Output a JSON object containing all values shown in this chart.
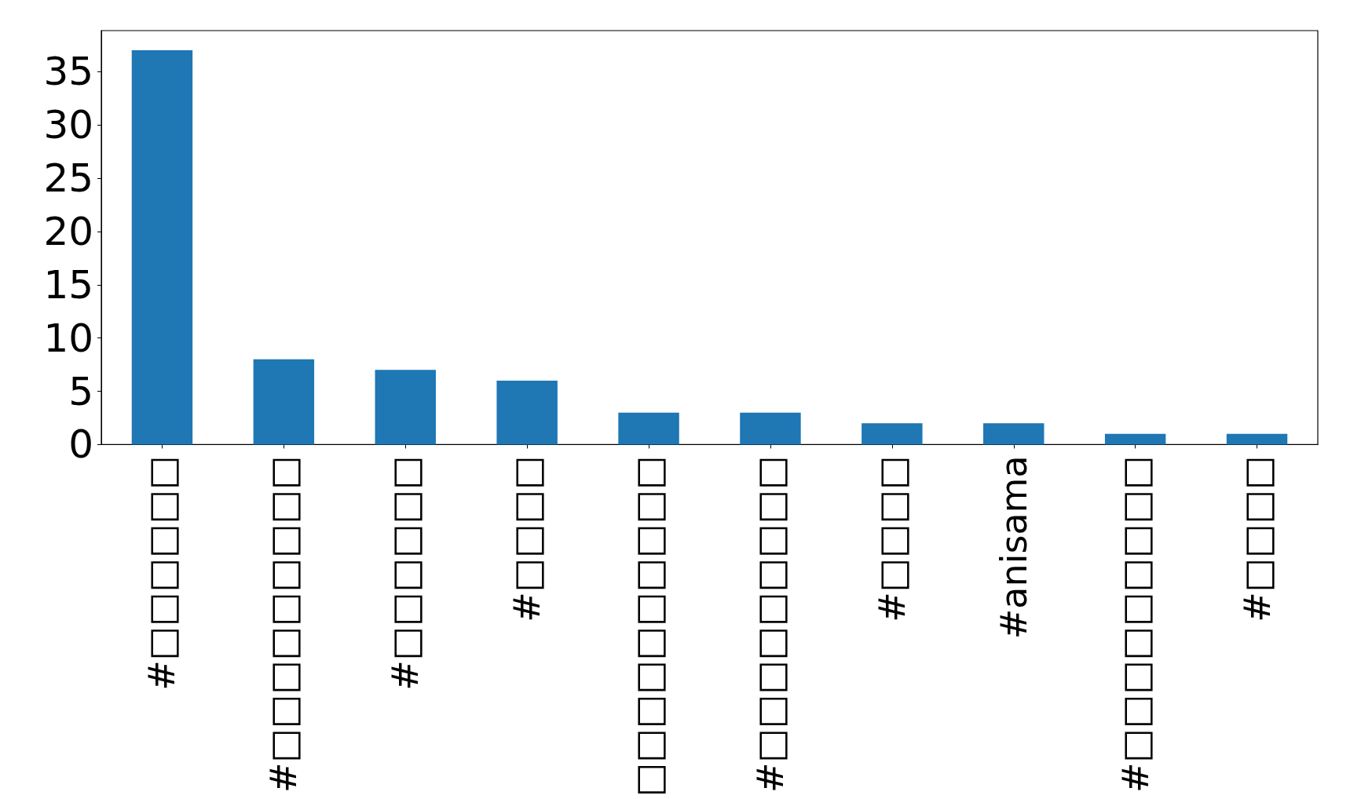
{
  "chart_data": {
    "type": "bar",
    "categories": [
      "#□□□□□□",
      "#□□□□□□□□□",
      "#□□□□□□",
      "#□□□□",
      "□□□□□□□□□□",
      "#□□□□□□□□□",
      "#□□□□",
      "#anisama",
      "#□□□□□□□□□",
      "#□□□□"
    ],
    "values": [
      37,
      8,
      7,
      6,
      3,
      3,
      2,
      2,
      1,
      1
    ],
    "color": "#1f77b4",
    "ylim": [
      0,
      38.85
    ],
    "yticks": [
      0,
      5,
      10,
      15,
      20,
      25,
      30,
      35
    ],
    "grid": false
  }
}
